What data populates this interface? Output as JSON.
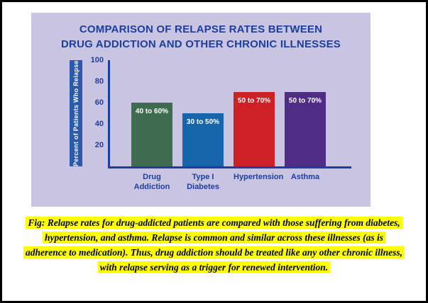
{
  "chart_data": {
    "type": "bar",
    "title": "COMPARISON OF RELAPSE RATES BETWEEN DRUG ADDICTION AND OTHER CHRONIC ILLNESSES",
    "title_lines": [
      "COMPARISON OF RELAPSE RATES BETWEEN",
      "DRUG ADDICTION AND OTHER CHRONIC ILLNESSES"
    ],
    "ylabel": "Percent of Patients Who Relapse",
    "xlabel": "",
    "categories": [
      "Drug Addiction",
      "Type I Diabetes",
      "Hypertension",
      "Asthma"
    ],
    "values": [
      60,
      50,
      70,
      70
    ],
    "bar_labels": [
      "40 to 60%",
      "30 to 50%",
      "50 to 70%",
      "50 to 70%"
    ],
    "colors": [
      "#3f6b51",
      "#1765ab",
      "#cd2027",
      "#4f2c85"
    ],
    "yticks": [
      100,
      80,
      60,
      40,
      20
    ],
    "ylim": [
      0,
      100
    ],
    "grid": false,
    "legend": "none",
    "panel_bg": "#c8c4e2",
    "axis_color": "#1c3f9e",
    "title_color": "#1c3f9e",
    "ylabel_strip_color": "#2c5aa8"
  },
  "figure": {
    "caption_lines": [
      "Fig: Relapse rates for drug-addicted patients are compared with those suffering from diabetes,",
      "hypertension, and asthma. Relapse is common and similar across these illnesses (as is",
      "adherence to medication). Thus, drug addiction should be treated like any other chronic illness,",
      "with relapse serving as a trigger for renewed intervention."
    ],
    "highlight_color": "#ffff00"
  }
}
